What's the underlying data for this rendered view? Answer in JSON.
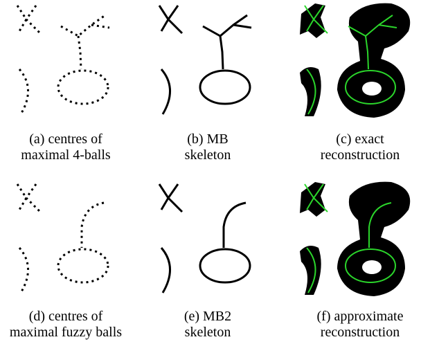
{
  "panels": [
    {
      "caption": [
        "(a) centres of",
        "maximal 4-balls"
      ]
    },
    {
      "caption": [
        "(b) MB",
        "skeleton"
      ]
    },
    {
      "caption": [
        "(c) exact",
        "reconstruction"
      ]
    },
    {
      "caption": [
        "(d) centres of",
        "maximal fuzzy balls"
      ]
    },
    {
      "caption": [
        "(e) MB2",
        "skeleton"
      ]
    },
    {
      "caption": [
        "(f) approximate",
        "reconstruction"
      ]
    }
  ]
}
